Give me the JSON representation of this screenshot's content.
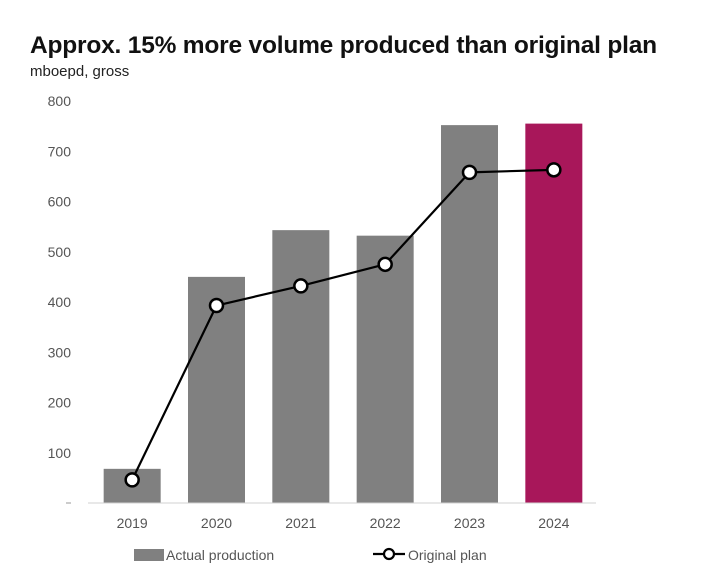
{
  "chart_data": {
    "type": "bar",
    "title": "Approx. 15% more volume produced than original plan",
    "ylabel": "mboepd, gross",
    "xlabel": "",
    "categories": [
      "2019",
      "2020",
      "2021",
      "2022",
      "2023",
      "2024"
    ],
    "ylim": [
      0,
      800
    ],
    "yticks": [
      100,
      200,
      300,
      400,
      500,
      600,
      700,
      800
    ],
    "grid": false,
    "series": [
      {
        "name": "Actual production",
        "kind": "bar",
        "values": [
          68,
          450,
          543,
          532,
          752,
          755
        ],
        "colors": [
          "#808080",
          "#808080",
          "#808080",
          "#808080",
          "#808080",
          "#A8175A"
        ]
      },
      {
        "name": "Original plan",
        "kind": "line",
        "marker": "circle-open",
        "color": "#000000",
        "values": [
          46,
          393,
          432,
          475,
          658,
          663
        ]
      }
    ],
    "legend": {
      "position": "bottom",
      "items": [
        "Actual production",
        "Original plan"
      ]
    }
  }
}
